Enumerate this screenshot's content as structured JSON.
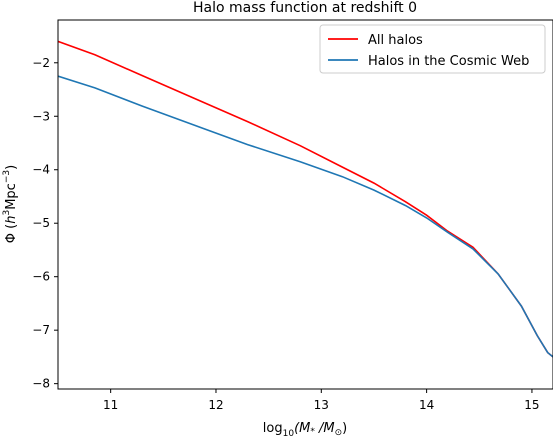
{
  "chart_data": {
    "type": "line",
    "title": "Halo mass function at redshift 0",
    "xlabel_parts": {
      "prefix": "log",
      "sub": "10",
      "body": "(M",
      "dot": "*",
      "slash": " /M",
      "sun": "⊙",
      "close": ")"
    },
    "ylabel_parts": {
      "phi": "Φ (",
      "h": "h",
      "sup3": "3",
      "mpc": "Mpc",
      "supm3": "−3",
      "close": ")"
    },
    "xlim": [
      10.5,
      15.2
    ],
    "ylim": [
      -8.1,
      -1.2
    ],
    "xticks": [
      11,
      12,
      13,
      14,
      15
    ],
    "xtick_labels": [
      "11",
      "12",
      "13",
      "14",
      "15"
    ],
    "yticks": [
      -2,
      -3,
      -4,
      -5,
      -6,
      -7,
      -8
    ],
    "ytick_labels": [
      "−2",
      "−3",
      "−4",
      "−5",
      "−6",
      "−7",
      "−8"
    ],
    "grid": false,
    "legend_position": "upper-right",
    "series": [
      {
        "name": "All halos",
        "color": "#ff0000",
        "points": [
          [
            10.5,
            -1.6
          ],
          [
            10.85,
            -1.85
          ],
          [
            11.3,
            -2.24
          ],
          [
            11.8,
            -2.67
          ],
          [
            12.3,
            -3.1
          ],
          [
            12.8,
            -3.55
          ],
          [
            13.2,
            -3.95
          ],
          [
            13.5,
            -4.25
          ],
          [
            13.8,
            -4.6
          ],
          [
            14.0,
            -4.85
          ],
          [
            14.2,
            -5.15
          ],
          [
            14.44,
            -5.45
          ],
          [
            14.68,
            -5.95
          ],
          [
            14.9,
            -6.55
          ],
          [
            15.05,
            -7.1
          ],
          [
            15.15,
            -7.42
          ],
          [
            15.2,
            -7.5
          ]
        ]
      },
      {
        "name": "Halos in the Cosmic Web",
        "color": "#1f77b4",
        "points": [
          [
            10.5,
            -2.25
          ],
          [
            10.85,
            -2.47
          ],
          [
            11.3,
            -2.81
          ],
          [
            11.8,
            -3.17
          ],
          [
            12.3,
            -3.53
          ],
          [
            12.8,
            -3.85
          ],
          [
            13.2,
            -4.13
          ],
          [
            13.5,
            -4.38
          ],
          [
            13.8,
            -4.67
          ],
          [
            14.0,
            -4.9
          ],
          [
            14.2,
            -5.17
          ],
          [
            14.44,
            -5.48
          ],
          [
            14.68,
            -5.95
          ],
          [
            14.9,
            -6.55
          ],
          [
            15.05,
            -7.1
          ],
          [
            15.15,
            -7.42
          ],
          [
            15.2,
            -7.5
          ]
        ]
      }
    ]
  }
}
